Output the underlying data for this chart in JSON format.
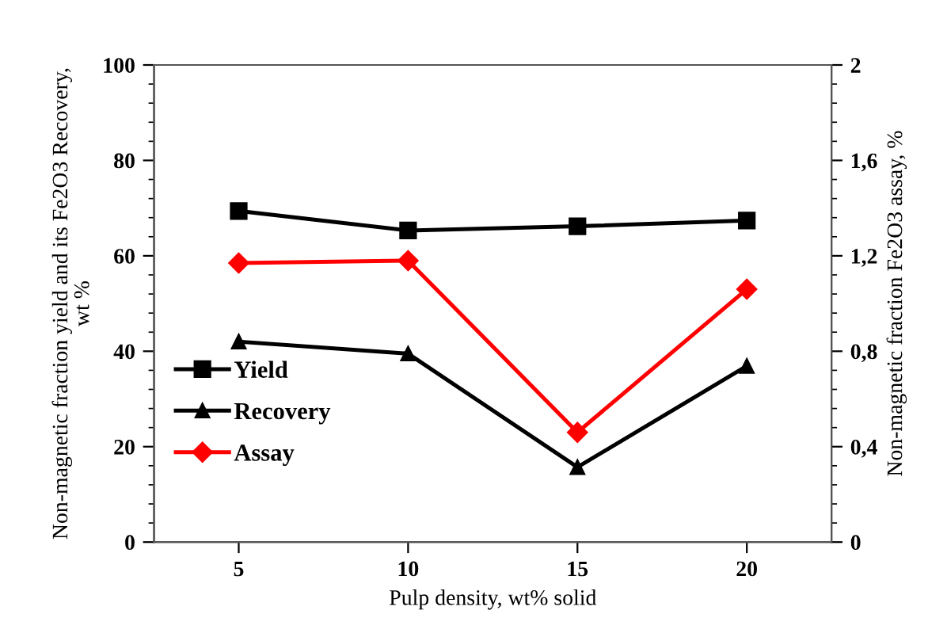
{
  "chart_data": {
    "type": "line",
    "xlabel": "Pulp density, wt% solid",
    "ylabel": "Non-magnetic fraction yield and its Fe2O3 Recovery,\nwt %",
    "y2label": "Non-magnetic fraction Fe2O3 assay, %",
    "x": [
      5,
      10,
      15,
      20
    ],
    "series": [
      {
        "name": "Yield",
        "color": "#000000",
        "marker": "square",
        "values": [
          69.4,
          65.3,
          66.2,
          67.4
        ]
      },
      {
        "name": "Recovery",
        "color": "#000000",
        "marker": "triangle",
        "values": [
          42.0,
          39.5,
          15.7,
          36.9
        ]
      },
      {
        "name": "Assay",
        "color": "#ff0000",
        "marker": "diamond",
        "axis": "y2",
        "values": [
          1.17,
          1.18,
          0.46,
          1.06
        ]
      }
    ],
    "xlim": [
      2.5,
      22.5
    ],
    "xticks": [
      5,
      10,
      15,
      20
    ],
    "ylim": [
      0,
      100
    ],
    "yticks": [
      0,
      20,
      40,
      60,
      80,
      100
    ],
    "y2lim": [
      0,
      2
    ],
    "y2ticks": [
      0,
      {
        "value": 0.4,
        "label": "0,4"
      },
      {
        "value": 0.8,
        "label": "0,8"
      },
      {
        "value": 1.2,
        "label": "1,2"
      },
      {
        "value": 1.6,
        "label": "1,6"
      },
      2
    ],
    "legend": "left",
    "grid": false,
    "line_style": "solid"
  }
}
